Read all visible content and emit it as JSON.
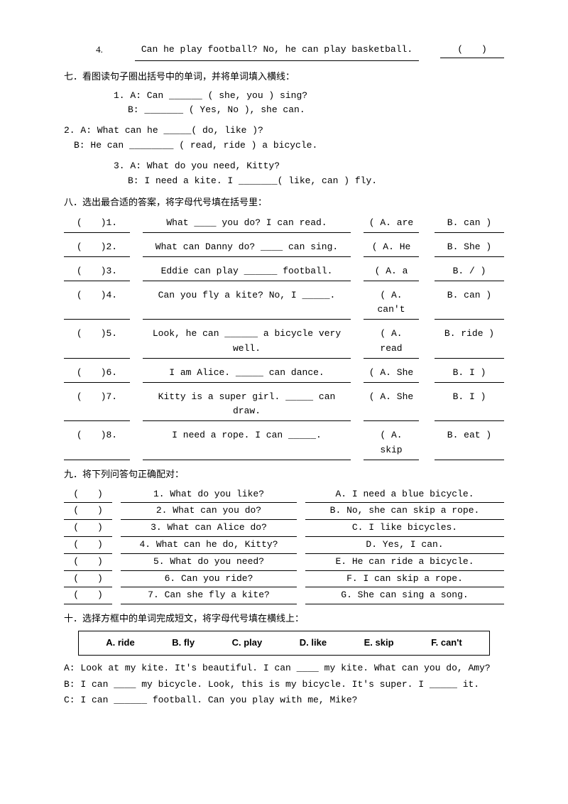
{
  "q4": {
    "num": "4.",
    "text": "Can he play football? No, he can play basketball.",
    "paren": "(　　)"
  },
  "sec7": {
    "head": "七．看图读句子圈出括号中的单词，并将单词填入横线：",
    "l1a": "1. A: Can ______ ( she,  you ) sing?",
    "l1b": "   B: _______ ( Yes,  No ), she can.",
    "l2a": "2. A: What can he _____( do,  like )?",
    "l2b": "   B: He can ________ ( read,  ride ) a bicycle.",
    "l3a": "3. A: What do you need, Kitty?",
    "l3b": "   B: I need a kite. I _______( like,  can ) fly."
  },
  "sec8": {
    "head": "八．选出最合适的答案，将字母代号填在括号里：",
    "rows": [
      {
        "n": "(　　)1.",
        "q": "What ____ you do? I can read.",
        "a": "( A. are",
        "b": "B. can )"
      },
      {
        "n": "(　　)2.",
        "q": "What can Danny do? ____ can sing.",
        "a": "( A. He",
        "b": "B. She )"
      },
      {
        "n": "(　　)3.",
        "q": "Eddie can play ______ football.",
        "a": "( A. a",
        "b": "B. / )"
      },
      {
        "n": "(　　)4.",
        "q": "Can you fly a kite? No, I _____.",
        "a": "( A. can't",
        "b": "B. can )"
      },
      {
        "n": "(　　)5.",
        "q": "Look, he can ______ a bicycle very well.",
        "a": "( A. read",
        "b": "B. ride )"
      },
      {
        "n": "(　　)6.",
        "q": "I am Alice. _____ can dance.",
        "a": "( A. She",
        "b": "B. I )"
      },
      {
        "n": "(　　)7.",
        "q": "Kitty is a super girl. _____ can draw.",
        "a": "( A. She",
        "b": "B. I )"
      },
      {
        "n": "(　　)8.",
        "q": "I need a rope. I can _____.",
        "a": "( A. skip",
        "b": "B. eat )"
      }
    ]
  },
  "sec9": {
    "head": "九．将下列问答句正确配对：",
    "rows": [
      {
        "p": "(　　)",
        "q": "1. What do you like?",
        "a": "A. I need a blue bicycle."
      },
      {
        "p": "(　　)",
        "q": "2. What can you do?",
        "a": "B. No, she can skip a rope."
      },
      {
        "p": "(　　)",
        "q": "3. What can Alice do?",
        "a": "C. I like bicycles."
      },
      {
        "p": "(　　)",
        "q": "4. What can he do, Kitty?",
        "a": "D. Yes, I can."
      },
      {
        "p": "(　　)",
        "q": "5. What do you need?",
        "a": "E. He can ride a bicycle."
      },
      {
        "p": "(　　)",
        "q": "6. Can you ride?",
        "a": "F. I can skip a rope."
      },
      {
        "p": "(　　)",
        "q": "7. Can she fly a kite?",
        "a": "G. She can sing a song."
      }
    ]
  },
  "sec10": {
    "head": "十．选择方框中的单词完成短文，将字母代号填在横线上：",
    "words": [
      "A. ride",
      "B. fly",
      "C. play",
      "D. like",
      "E. skip",
      "F. can't"
    ],
    "lA": "A: Look at my kite. It's beautiful. I can ____ my kite. What can you do, Amy?",
    "lB": "B: I can ____ my bicycle. Look, this is my bicycle. It's super. I _____ it.",
    "lC": "C: I can ______ football. Can you play with me, Mike?"
  }
}
